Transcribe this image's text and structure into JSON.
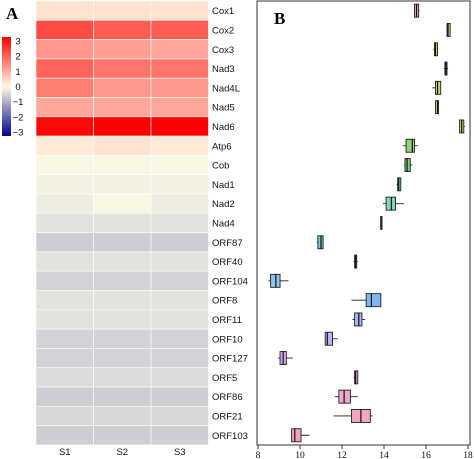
{
  "panels": {
    "a": "A",
    "b": "B"
  },
  "chart_data": [
    {
      "type": "heatmap",
      "panel": "A",
      "columns": [
        "S1",
        "S2",
        "S3"
      ],
      "rows": [
        "Cox1",
        "Cox2",
        "Cox3",
        "Nad3",
        "Nad4L",
        "Nad5",
        "Nad6",
        "Atp6",
        "Cob",
        "Nad1",
        "Nad2",
        "Nad4",
        "ORF87",
        "ORF40",
        "ORF104",
        "ORF8",
        "ORF11",
        "ORF10",
        "ORF127",
        "ORF5",
        "ORF86",
        "ORF21",
        "ORF103"
      ],
      "values": [
        [
          0.3,
          0.3,
          0.3
        ],
        [
          2.1,
          1.9,
          1.9
        ],
        [
          1.2,
          1.1,
          1.0
        ],
        [
          1.8,
          1.6,
          1.6
        ],
        [
          1.5,
          1.2,
          1.2
        ],
        [
          1.0,
          1.0,
          1.0
        ],
        [
          2.9,
          3.0,
          3.0
        ],
        [
          0.2,
          0.3,
          0.2
        ],
        [
          -0.1,
          -0.1,
          -0.1
        ],
        [
          -0.2,
          -0.2,
          -0.2
        ],
        [
          -0.3,
          -0.1,
          -0.3
        ],
        [
          -0.5,
          -0.5,
          -0.5
        ],
        [
          -0.9,
          -0.9,
          -0.9
        ],
        [
          -0.5,
          -0.5,
          -0.5
        ],
        [
          -0.8,
          -0.8,
          -0.8
        ],
        [
          -0.5,
          -0.5,
          -0.5
        ],
        [
          -0.5,
          -0.5,
          -0.5
        ],
        [
          -0.8,
          -0.8,
          -0.8
        ],
        [
          -0.8,
          -0.8,
          -0.8
        ],
        [
          -0.6,
          -0.6,
          -0.6
        ],
        [
          -0.9,
          -0.9,
          -0.9
        ],
        [
          -0.7,
          -0.7,
          -0.7
        ],
        [
          -0.9,
          -0.9,
          -0.9
        ]
      ],
      "legend": {
        "min": -3,
        "max": 3,
        "ticks": [
          "3",
          "2",
          "1",
          "0",
          "−1",
          "−2",
          "−3"
        ],
        "colors": [
          "#00008b",
          "#fffbe6",
          "#ff0000"
        ]
      }
    },
    {
      "type": "boxplot",
      "panel": "B",
      "xlim": [
        8,
        18
      ],
      "xticks": [
        "8",
        "10",
        "12",
        "14",
        "16",
        "18"
      ],
      "boxes": [
        {
          "gene": "Cox1",
          "min": 15.45,
          "q1": 15.45,
          "median": 15.55,
          "q3": 15.65,
          "max": 15.7,
          "color": "#f4a6a6"
        },
        {
          "gene": "Cox2",
          "min": 17.0,
          "q1": 17.0,
          "median": 17.05,
          "q3": 17.15,
          "max": 17.15,
          "color": "#e6c77a"
        },
        {
          "gene": "Cox3",
          "min": 16.35,
          "q1": 16.4,
          "median": 16.45,
          "q3": 16.55,
          "max": 16.55,
          "color": "#e3bd6a"
        },
        {
          "gene": "Nad3",
          "min": 16.85,
          "q1": 16.9,
          "median": 16.95,
          "q3": 17.0,
          "max": 17.05,
          "color": "#cfcf6e"
        },
        {
          "gene": "Nad4L",
          "min": 16.3,
          "q1": 16.45,
          "median": 16.55,
          "q3": 16.7,
          "max": 16.7,
          "color": "#c6d96a"
        },
        {
          "gene": "Nad5",
          "min": 16.45,
          "q1": 16.45,
          "median": 16.55,
          "q3": 16.6,
          "max": 16.6,
          "color": "#b7d56a"
        },
        {
          "gene": "Nad6",
          "min": 17.6,
          "q1": 17.6,
          "median": 17.7,
          "q3": 17.8,
          "max": 17.85,
          "color": "#c7dc6e"
        },
        {
          "gene": "Atp6",
          "min": 14.9,
          "q1": 15.05,
          "median": 15.35,
          "q3": 15.45,
          "max": 15.6,
          "color": "#8fd17e"
        },
        {
          "gene": "Cob",
          "min": 14.95,
          "q1": 15.0,
          "median": 15.1,
          "q3": 15.25,
          "max": 15.35,
          "color": "#79cf86"
        },
        {
          "gene": "Nad1",
          "min": 14.6,
          "q1": 14.65,
          "median": 14.7,
          "q3": 14.8,
          "max": 14.8,
          "color": "#6fcf96"
        },
        {
          "gene": "Nad2",
          "min": 13.95,
          "q1": 14.1,
          "median": 14.35,
          "q3": 14.55,
          "max": 14.95,
          "color": "#7fd6b0"
        },
        {
          "gene": "Nad4",
          "min": 13.85,
          "q1": 13.85,
          "median": 13.85,
          "q3": 13.85,
          "max": 13.85,
          "color": "#6fd0c0"
        },
        {
          "gene": "ORF87",
          "min": 10.8,
          "q1": 10.85,
          "median": 11.0,
          "q3": 11.1,
          "max": 11.1,
          "color": "#6ec9d8"
        },
        {
          "gene": "ORF40",
          "min": 12.55,
          "q1": 12.6,
          "median": 12.65,
          "q3": 12.7,
          "max": 12.75,
          "color": "#74c4e6"
        },
        {
          "gene": "ORF104",
          "min": 8.5,
          "q1": 8.6,
          "median": 8.85,
          "q3": 9.05,
          "max": 9.45,
          "color": "#8fc3f0"
        },
        {
          "gene": "ORF8",
          "min": 12.45,
          "q1": 13.15,
          "median": 13.4,
          "q3": 13.85,
          "max": 13.85,
          "color": "#7fb8f0"
        },
        {
          "gene": "ORF11",
          "min": 12.5,
          "q1": 12.6,
          "median": 12.8,
          "q3": 12.95,
          "max": 13.1,
          "color": "#a6b6f2"
        },
        {
          "gene": "ORF10",
          "min": 11.2,
          "q1": 11.2,
          "median": 11.3,
          "q3": 11.55,
          "max": 11.8,
          "color": "#c2b0f0"
        },
        {
          "gene": "ORF127",
          "min": 8.95,
          "q1": 9.05,
          "median": 9.2,
          "q3": 9.35,
          "max": 9.65,
          "color": "#d9a9ea"
        },
        {
          "gene": "ORF5",
          "min": 12.55,
          "q1": 12.6,
          "median": 12.65,
          "q3": 12.75,
          "max": 12.75,
          "color": "#e7a6df"
        },
        {
          "gene": "ORF86",
          "min": 11.65,
          "q1": 11.85,
          "median": 12.1,
          "q3": 12.4,
          "max": 12.75,
          "color": "#efa6cf"
        },
        {
          "gene": "ORF21",
          "min": 11.6,
          "q1": 12.45,
          "median": 12.9,
          "q3": 13.35,
          "max": 13.45,
          "color": "#f2a6c4"
        },
        {
          "gene": "ORF103",
          "min": 9.6,
          "q1": 9.6,
          "median": 9.75,
          "q3": 10.05,
          "max": 10.45,
          "color": "#f4a6b8"
        }
      ]
    }
  ]
}
